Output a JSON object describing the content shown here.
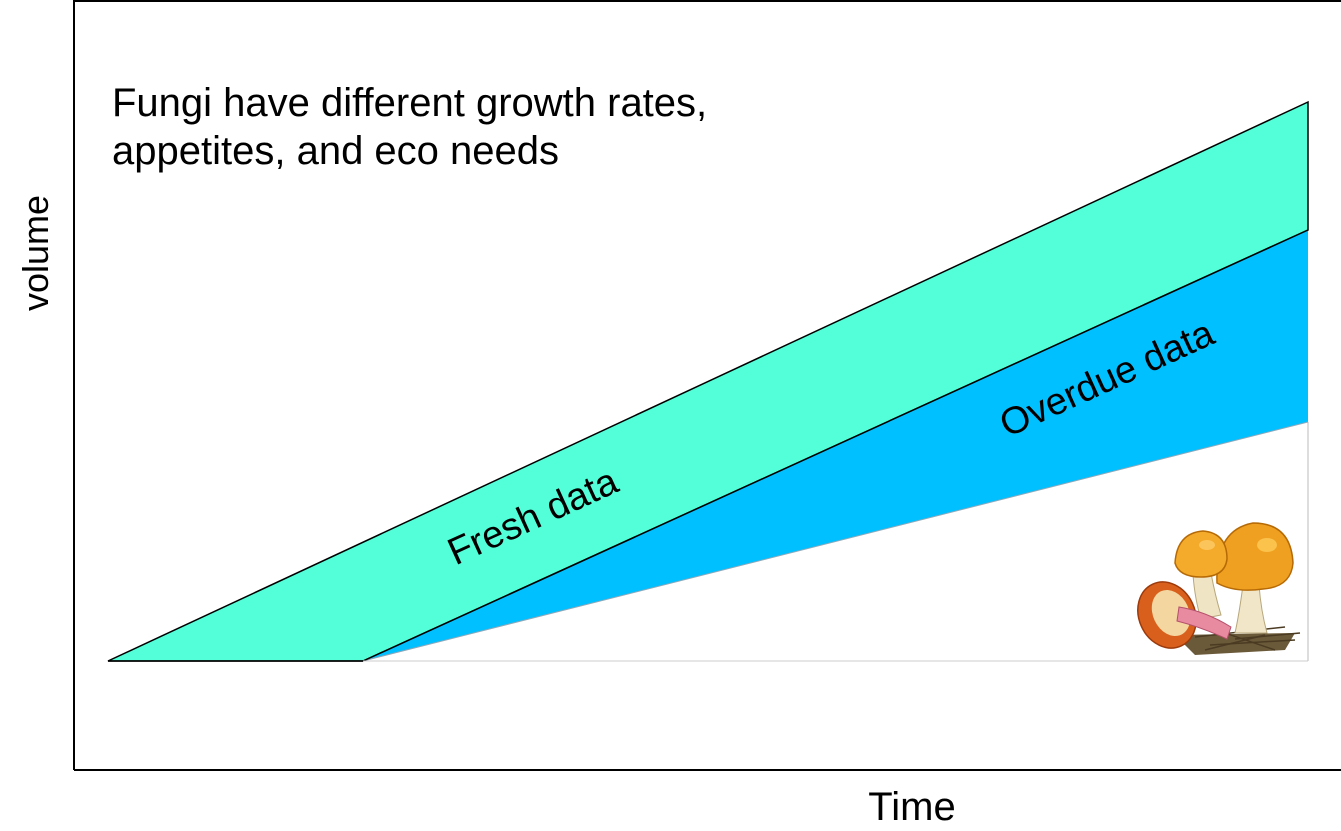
{
  "title_lines": [
    "Fungi have different growth rates,",
    "appetites, and eco needs"
  ],
  "axis": {
    "y_label": "volume",
    "x_label": "Time"
  },
  "regions": {
    "fresh": {
      "label": "Fresh data",
      "color": "#52FFD8"
    },
    "overdue": {
      "label": "Overdue data",
      "color": "#00C0FF"
    }
  },
  "illustration": {
    "icon": "mushroom-icon"
  }
}
